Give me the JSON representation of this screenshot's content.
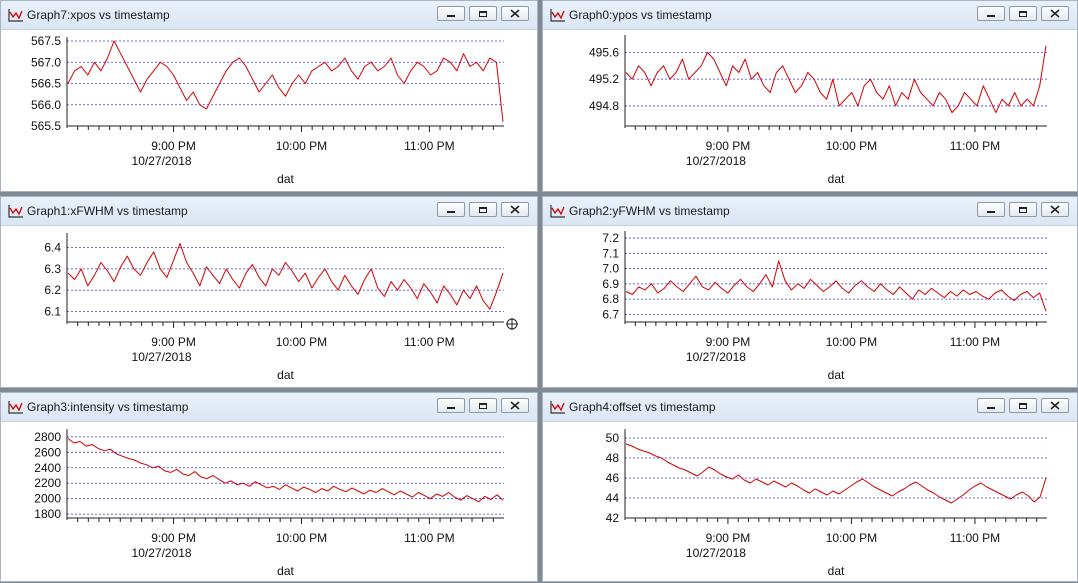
{
  "windows": [
    {
      "title": "Graph7:xpos vs timestamp",
      "chart_data": {
        "type": "line",
        "xlabel": "dat",
        "date_label": "10/27/2018",
        "x_ticks": [
          "9:00 PM",
          "10:00 PM",
          "11:00 PM"
        ],
        "x_range": [
          "8:10 PM",
          "11:35 PM"
        ],
        "y_ticks": [
          "567.5",
          "567.0",
          "566.5",
          "566.0",
          "565.5"
        ],
        "ylim": [
          565.5,
          567.5
        ],
        "grid": true,
        "series": [
          {
            "color": "#d40000",
            "values": [
              566.5,
              566.8,
              566.9,
              566.7,
              567.0,
              566.8,
              567.1,
              567.5,
              567.2,
              566.9,
              566.6,
              566.3,
              566.6,
              566.8,
              567.0,
              566.9,
              566.7,
              566.4,
              566.1,
              566.3,
              566.0,
              565.9,
              566.2,
              566.5,
              566.8,
              567.0,
              567.1,
              566.9,
              566.6,
              566.3,
              566.5,
              566.7,
              566.4,
              566.2,
              566.5,
              566.7,
              566.5,
              566.8,
              566.9,
              567.0,
              566.8,
              566.9,
              567.1,
              566.8,
              566.6,
              566.9,
              567.0,
              566.8,
              566.9,
              567.1,
              566.7,
              566.5,
              566.8,
              567.0,
              566.9,
              566.7,
              566.8,
              567.1,
              567.0,
              566.8,
              567.2,
              566.9,
              567.0,
              566.8,
              567.1,
              567.0,
              565.6
            ]
          }
        ]
      }
    },
    {
      "title": "Graph0:ypos vs timestamp",
      "chart_data": {
        "type": "line",
        "xlabel": "dat",
        "date_label": "10/27/2018",
        "x_ticks": [
          "9:00 PM",
          "10:00 PM",
          "11:00 PM"
        ],
        "x_range": [
          "8:10 PM",
          "11:35 PM"
        ],
        "y_ticks": [
          "495.6",
          "495.2",
          "494.8"
        ],
        "ylim": [
          494.5,
          495.8
        ],
        "grid": true,
        "series": [
          {
            "color": "#d40000",
            "values": [
              495.3,
              495.2,
              495.4,
              495.3,
              495.1,
              495.3,
              495.4,
              495.2,
              495.3,
              495.5,
              495.2,
              495.3,
              495.4,
              495.6,
              495.5,
              495.3,
              495.1,
              495.4,
              495.3,
              495.5,
              495.2,
              495.3,
              495.1,
              495.0,
              495.3,
              495.4,
              495.2,
              495.0,
              495.1,
              495.3,
              495.2,
              495.0,
              494.9,
              495.2,
              494.8,
              494.9,
              495.0,
              494.8,
              495.1,
              495.2,
              495.0,
              494.9,
              495.1,
              494.8,
              495.0,
              494.9,
              495.2,
              495.0,
              494.9,
              494.8,
              495.0,
              494.9,
              494.7,
              494.8,
              495.0,
              494.9,
              494.8,
              495.1,
              494.9,
              494.7,
              494.9,
              494.8,
              495.0,
              494.8,
              494.9,
              494.8,
              495.1,
              495.7
            ]
          }
        ]
      }
    },
    {
      "title": "Graph1:xFWHM vs timestamp",
      "chart_data": {
        "type": "line",
        "xlabel": "dat",
        "date_label": "10/27/2018",
        "x_ticks": [
          "9:00 PM",
          "10:00 PM",
          "11:00 PM"
        ],
        "x_range": [
          "8:10 PM",
          "11:35 PM"
        ],
        "y_ticks": [
          "6.4",
          "6.3",
          "6.2",
          "6.1"
        ],
        "ylim": [
          6.05,
          6.45
        ],
        "grid": true,
        "series": [
          {
            "color": "#d40000",
            "values": [
              6.28,
              6.25,
              6.3,
              6.22,
              6.27,
              6.33,
              6.29,
              6.24,
              6.31,
              6.36,
              6.3,
              6.27,
              6.33,
              6.38,
              6.3,
              6.26,
              6.34,
              6.42,
              6.33,
              6.28,
              6.22,
              6.31,
              6.27,
              6.23,
              6.3,
              6.25,
              6.21,
              6.28,
              6.32,
              6.26,
              6.22,
              6.3,
              6.27,
              6.33,
              6.29,
              6.24,
              6.28,
              6.21,
              6.26,
              6.3,
              6.24,
              6.2,
              6.27,
              6.22,
              6.18,
              6.25,
              6.3,
              6.21,
              6.17,
              6.24,
              6.2,
              6.25,
              6.21,
              6.16,
              6.23,
              6.19,
              6.14,
              6.22,
              6.18,
              6.13,
              6.2,
              6.16,
              6.22,
              6.15,
              6.11,
              6.19,
              6.28
            ]
          }
        ]
      }
    },
    {
      "title": "Graph2:yFWHM vs timestamp",
      "chart_data": {
        "type": "line",
        "xlabel": "dat",
        "date_label": "10/27/2018",
        "x_ticks": [
          "9:00 PM",
          "10:00 PM",
          "11:00 PM"
        ],
        "x_range": [
          "8:10 PM",
          "11:35 PM"
        ],
        "y_ticks": [
          "7.2",
          "7.1",
          "7.0",
          "6.9",
          "6.8",
          "6.7"
        ],
        "ylim": [
          6.65,
          7.22
        ],
        "grid": true,
        "series": [
          {
            "color": "#d40000",
            "values": [
              6.85,
              6.83,
              6.88,
              6.86,
              6.9,
              6.84,
              6.87,
              6.92,
              6.88,
              6.85,
              6.9,
              6.95,
              6.88,
              6.86,
              6.91,
              6.87,
              6.84,
              6.89,
              6.93,
              6.88,
              6.85,
              6.9,
              6.96,
              6.88,
              7.05,
              6.92,
              6.86,
              6.9,
              6.87,
              6.93,
              6.89,
              6.85,
              6.88,
              6.92,
              6.87,
              6.84,
              6.89,
              6.92,
              6.88,
              6.85,
              6.9,
              6.86,
              6.83,
              6.88,
              6.84,
              6.8,
              6.86,
              6.83,
              6.87,
              6.84,
              6.81,
              6.85,
              6.82,
              6.86,
              6.83,
              6.85,
              6.82,
              6.8,
              6.84,
              6.86,
              6.82,
              6.79,
              6.83,
              6.85,
              6.81,
              6.84,
              6.72
            ]
          }
        ]
      }
    },
    {
      "title": "Graph3:intensity vs timestamp",
      "chart_data": {
        "type": "line",
        "xlabel": "dat",
        "date_label": "10/27/2018",
        "x_ticks": [
          "9:00 PM",
          "10:00 PM",
          "11:00 PM"
        ],
        "x_range": [
          "8:10 PM",
          "11:35 PM"
        ],
        "y_ticks": [
          "2800",
          "2600",
          "2400",
          "2200",
          "2000",
          "1800"
        ],
        "ylim": [
          1750,
          2850
        ],
        "grid": true,
        "series": [
          {
            "color": "#d40000",
            "values": [
              2780,
              2720,
              2740,
              2680,
              2700,
              2650,
              2620,
              2640,
              2580,
              2550,
              2520,
              2500,
              2460,
              2440,
              2400,
              2420,
              2360,
              2340,
              2380,
              2320,
              2300,
              2350,
              2280,
              2260,
              2300,
              2250,
              2200,
              2230,
              2180,
              2200,
              2160,
              2220,
              2180,
              2140,
              2160,
              2120,
              2180,
              2140,
              2100,
              2150,
              2120,
              2080,
              2130,
              2100,
              2160,
              2120,
              2090,
              2140,
              2100,
              2060,
              2110,
              2080,
              2130,
              2090,
              2050,
              2100,
              2060,
              2020,
              2080,
              2040,
              2000,
              2060,
              2030,
              2080,
              2020,
              1980,
              2040,
              2000,
              1960,
              2030,
              1990,
              2050,
              1980
            ]
          }
        ]
      }
    },
    {
      "title": "Graph4:offset vs timestamp",
      "chart_data": {
        "type": "line",
        "xlabel": "dat",
        "date_label": "10/27/2018",
        "x_ticks": [
          "9:00 PM",
          "10:00 PM",
          "11:00 PM"
        ],
        "x_range": [
          "8:10 PM",
          "11:35 PM"
        ],
        "y_ticks": [
          "50",
          "48",
          "46",
          "44",
          "42"
        ],
        "ylim": [
          42,
          50.5
        ],
        "grid": true,
        "series": [
          {
            "color": "#d40000",
            "values": [
              49.4,
              49.2,
              48.9,
              48.7,
              48.5,
              48.2,
              48.0,
              47.6,
              47.3,
              47.0,
              46.8,
              46.5,
              46.2,
              46.6,
              47.1,
              46.8,
              46.4,
              46.1,
              45.9,
              46.3,
              45.8,
              45.5,
              45.9,
              45.6,
              45.3,
              45.7,
              45.4,
              45.1,
              45.5,
              45.2,
              44.8,
              44.5,
              44.9,
              44.6,
              44.3,
              44.7,
              44.4,
              44.8,
              45.2,
              45.6,
              45.9,
              45.5,
              45.1,
              44.8,
              44.5,
              44.2,
              44.6,
              44.9,
              45.3,
              45.6,
              45.2,
              44.8,
              44.5,
              44.1,
              43.8,
              43.5,
              43.9,
              44.3,
              44.8,
              45.2,
              45.5,
              45.1,
              44.8,
              44.5,
              44.2,
              43.9,
              44.3,
              44.6,
              44.2,
              43.6,
              44.1,
              46.0
            ]
          }
        ]
      }
    }
  ]
}
